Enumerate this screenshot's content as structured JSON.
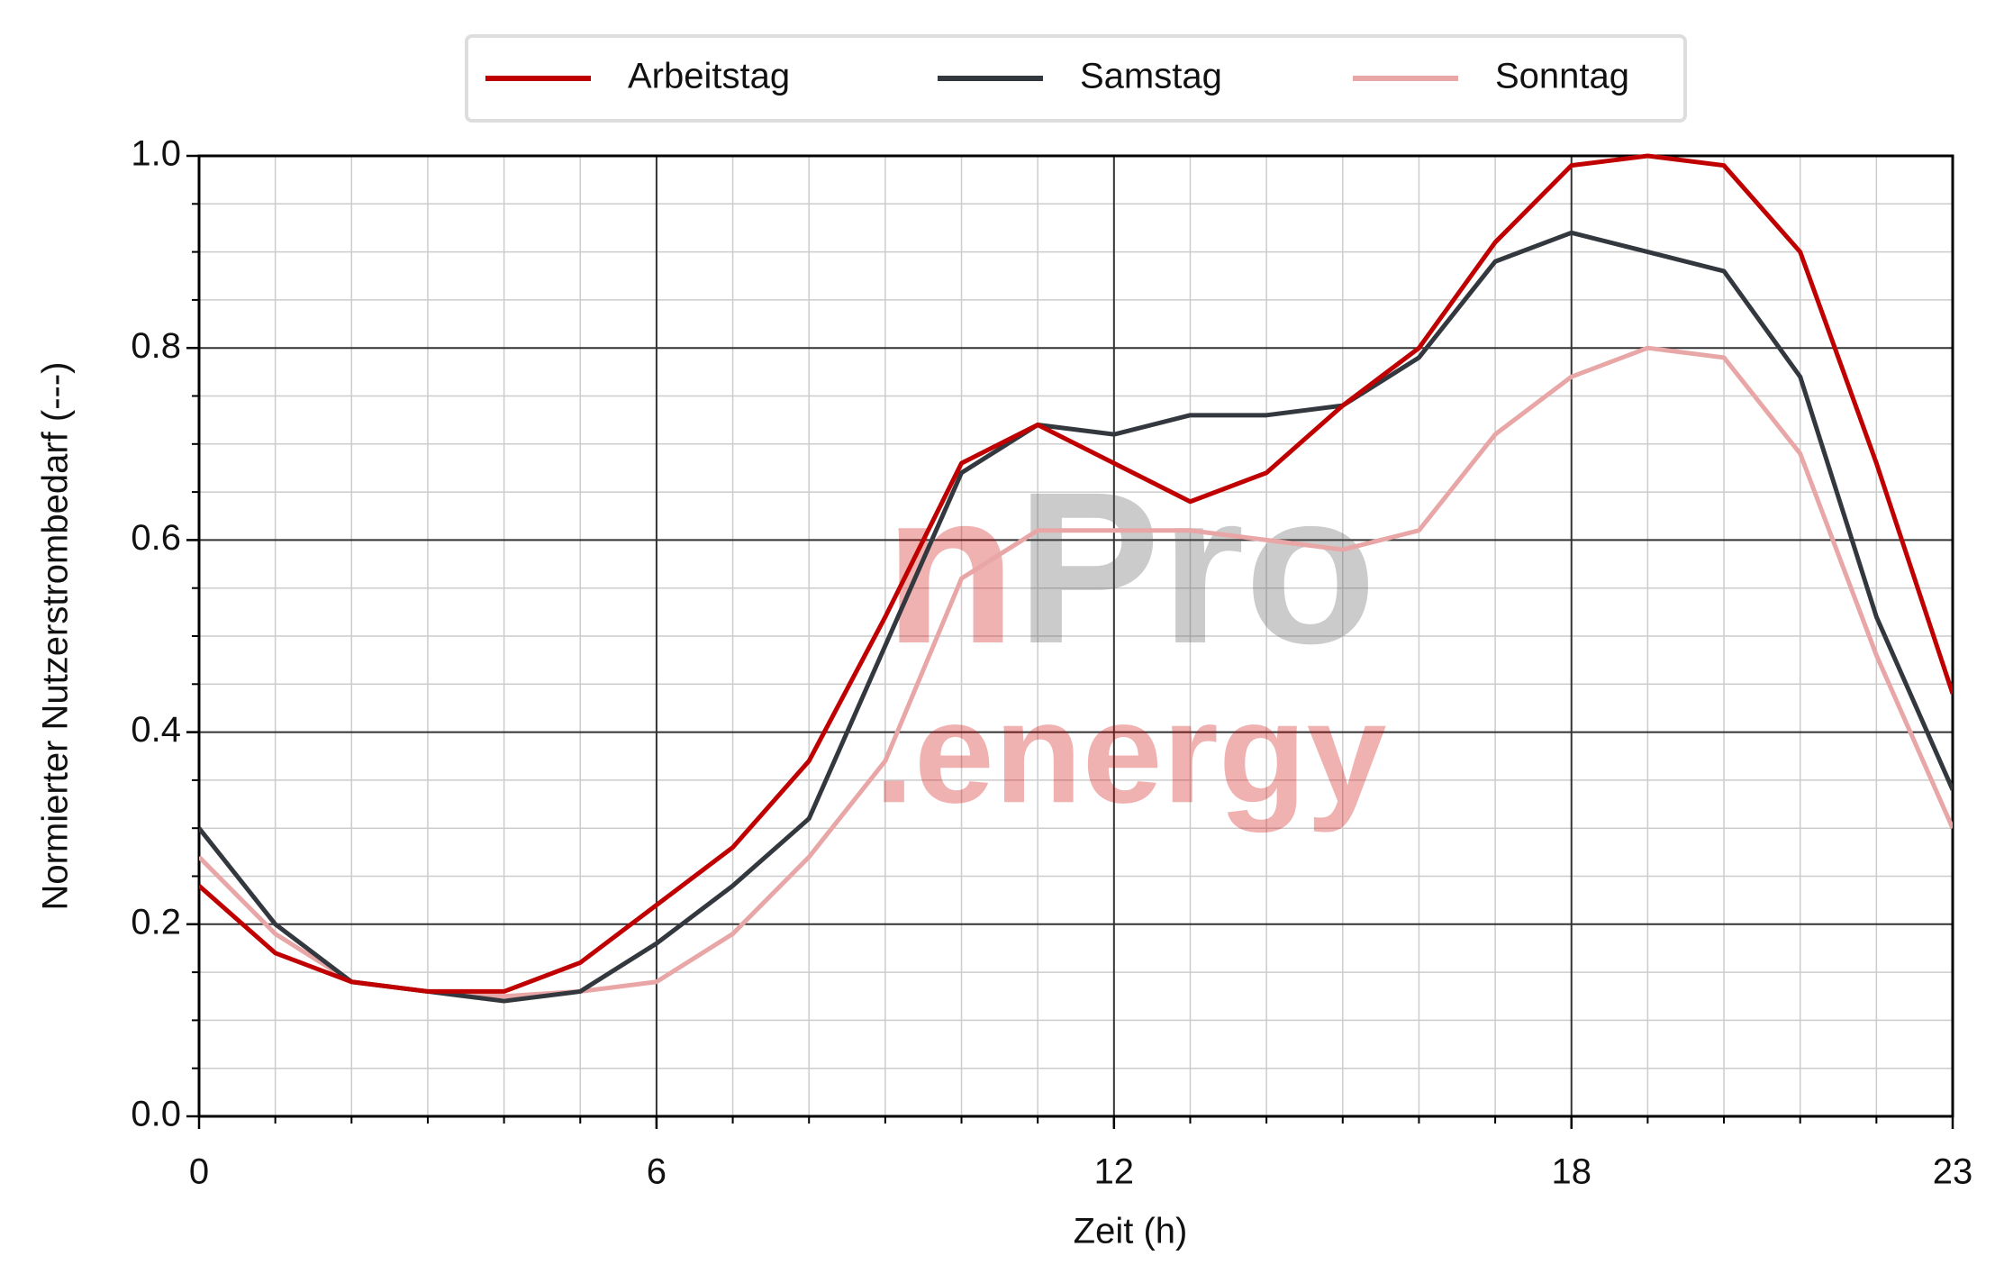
{
  "chart_data": {
    "type": "line",
    "x_label": "Zeit (h)",
    "y_label": "Normierter Nutzerstrombedarf (---)",
    "x": [
      0,
      1,
      2,
      3,
      4,
      5,
      6,
      7,
      8,
      9,
      10,
      11,
      12,
      13,
      14,
      15,
      16,
      17,
      18,
      19,
      20,
      21,
      22,
      23
    ],
    "series": [
      {
        "name": "Arbeitstag",
        "color": "#c00000",
        "values": [
          0.24,
          0.17,
          0.14,
          0.13,
          0.13,
          0.16,
          0.22,
          0.28,
          0.37,
          0.52,
          0.68,
          0.72,
          0.68,
          0.64,
          0.67,
          0.74,
          0.8,
          0.91,
          0.99,
          1.0,
          0.99,
          0.9,
          0.68,
          0.44
        ]
      },
      {
        "name": "Samstag",
        "color": "#33383e",
        "values": [
          0.3,
          0.2,
          0.14,
          0.13,
          0.12,
          0.13,
          0.18,
          0.24,
          0.31,
          0.49,
          0.67,
          0.72,
          0.71,
          0.73,
          0.73,
          0.74,
          0.79,
          0.89,
          0.92,
          0.9,
          0.88,
          0.77,
          0.52,
          0.34
        ]
      },
      {
        "name": "Sonntag",
        "color": "#e8a6a6",
        "values": [
          0.27,
          0.19,
          0.14,
          0.13,
          0.125,
          0.13,
          0.14,
          0.19,
          0.27,
          0.37,
          0.56,
          0.61,
          0.61,
          0.61,
          0.6,
          0.59,
          0.61,
          0.71,
          0.77,
          0.8,
          0.79,
          0.69,
          0.48,
          0.3
        ]
      }
    ],
    "xlim": [
      0,
      23
    ],
    "xticks": [
      0,
      6,
      12,
      18,
      23
    ],
    "ylim": [
      0,
      1
    ],
    "yticks": [
      {
        "value": 0,
        "label": "0.0"
      },
      0.2,
      0.4,
      0.6,
      0.8,
      {
        "value": 1,
        "label": "1.0"
      }
    ],
    "grid": true,
    "legend": "top",
    "watermark": [
      "n",
      "Pro",
      ".energy"
    ]
  }
}
